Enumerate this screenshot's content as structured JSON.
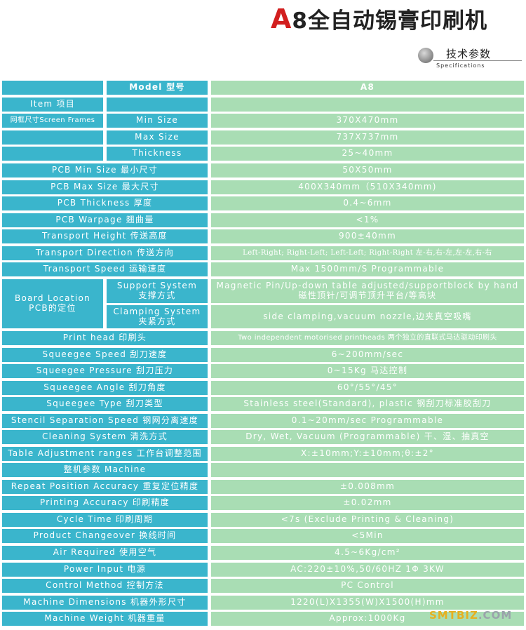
{
  "title": {
    "prefix": "A",
    "text": "8全自动锡膏印刷机"
  },
  "specs_header": {
    "cn": "技术参数",
    "en": "Specifications"
  },
  "header": {
    "model_label": "Model 型号",
    "model_value": "A8"
  },
  "item_label": "Item 项目",
  "screen_frames": {
    "group_label": "网框尺寸Screen Frames",
    "rows": [
      {
        "label": "Min Size",
        "value": "370X470mm"
      },
      {
        "label": "Max Size",
        "value": "737X737mm"
      },
      {
        "label": "Thickness",
        "value": "25~40mm"
      }
    ]
  },
  "rows_a": [
    {
      "label": "PCB Min Size 最小尺寸",
      "value": "50X50mm"
    },
    {
      "label": "PCB Max Size 最大尺寸",
      "value": "400X340mm（510X340mm)"
    },
    {
      "label": "PCB Thickness 厚度",
      "value": "0.4~6mm"
    },
    {
      "label": "PCB Warpage 翘曲量",
      "value": "<1%"
    },
    {
      "label": "Transport Height 传送高度",
      "value": "900±40mm"
    },
    {
      "label": "Transport Direction 传送方向",
      "value": "Left-Right; Right-Left; Left-Left; Right-Right 左-右,右-左,左-左,右-右"
    },
    {
      "label": "Transport Speed 运输速度",
      "value": "Max 1500mm/S Programmable"
    }
  ],
  "board_location": {
    "label_en": "Board Location",
    "label_cn": "PCB的定位",
    "rows": [
      {
        "label_en": "Support System",
        "label_cn": "支撑方式",
        "value": "Magnetic Pin/Up-down table adjusted/supportblock by hand磁性顶针/可调节顶升平台/等高块"
      },
      {
        "label_en": "Clamping System",
        "label_cn": "夹紧方式",
        "value": "side clamping,vacuum nozzle,边夹真空吸嘴"
      }
    ]
  },
  "rows_b": [
    {
      "label": "Print head 印刷头",
      "value": "Two independent motorised printheads 两个独立的直联式马达驱动印刷头"
    },
    {
      "label": "Squeegee Speed 刮刀速度",
      "value": "6~200mm/sec"
    },
    {
      "label": "Squeegee Pressure 刮刀压力",
      "value": "0~15Kg 马达控制"
    },
    {
      "label": "Squeegee Angle 刮刀角度",
      "value": "60°/55°/45°"
    },
    {
      "label": "Squeegee Type 刮刀类型",
      "value": "Stainless steel(Standard), plastic 钢刮刀标准胶刮刀"
    },
    {
      "label": "Stencil Separation Speed 钢网分离速度",
      "value": "0.1~20mm/sec Programmable"
    },
    {
      "label": "Cleaning System 清洗方式",
      "value": "Dry, Wet, Vacuum (Programmable) 干、湿、抽真空"
    },
    {
      "label": "Table Adjustment ranges 工作台调整范围",
      "value": "X:±10mm;Y:±10mm;θ:±2°"
    }
  ],
  "machine_header": "整机参数 Machine",
  "rows_c": [
    {
      "label": "Repeat Position Accuracy 重复定位精度",
      "value": "±0.008mm"
    },
    {
      "label": "Printing Accuracy 印刷精度",
      "value": "±0.02mm"
    },
    {
      "label": "Cycle Time 印刷周期",
      "value": "<7s (Exclude Printing & Cleaning)"
    },
    {
      "label": "Product Changeover 换线时间",
      "value": "<5Min"
    },
    {
      "label": "Air Required 使用空气",
      "value": "4.5~6Kg/cm²"
    },
    {
      "label": "Power Input 电源",
      "value": "AC:220±10%,50/60HZ 1Φ 3KW"
    },
    {
      "label": "Control Method 控制方法",
      "value": "PC Control"
    },
    {
      "label": "Machine Dimensions 机器外形尺寸",
      "value": "1220(L)X1355(W)X1500(H)mm"
    },
    {
      "label": "Machine Weight 机器重量",
      "value": "Approx:1000Kg"
    }
  ],
  "watermark": {
    "text": "SMTBIZ",
    "suffix": ".COM"
  },
  "colors": {
    "label_bg": "#3ab5cc",
    "value_bg": "#a9ddb4",
    "title_accent": "#d21f1f"
  }
}
